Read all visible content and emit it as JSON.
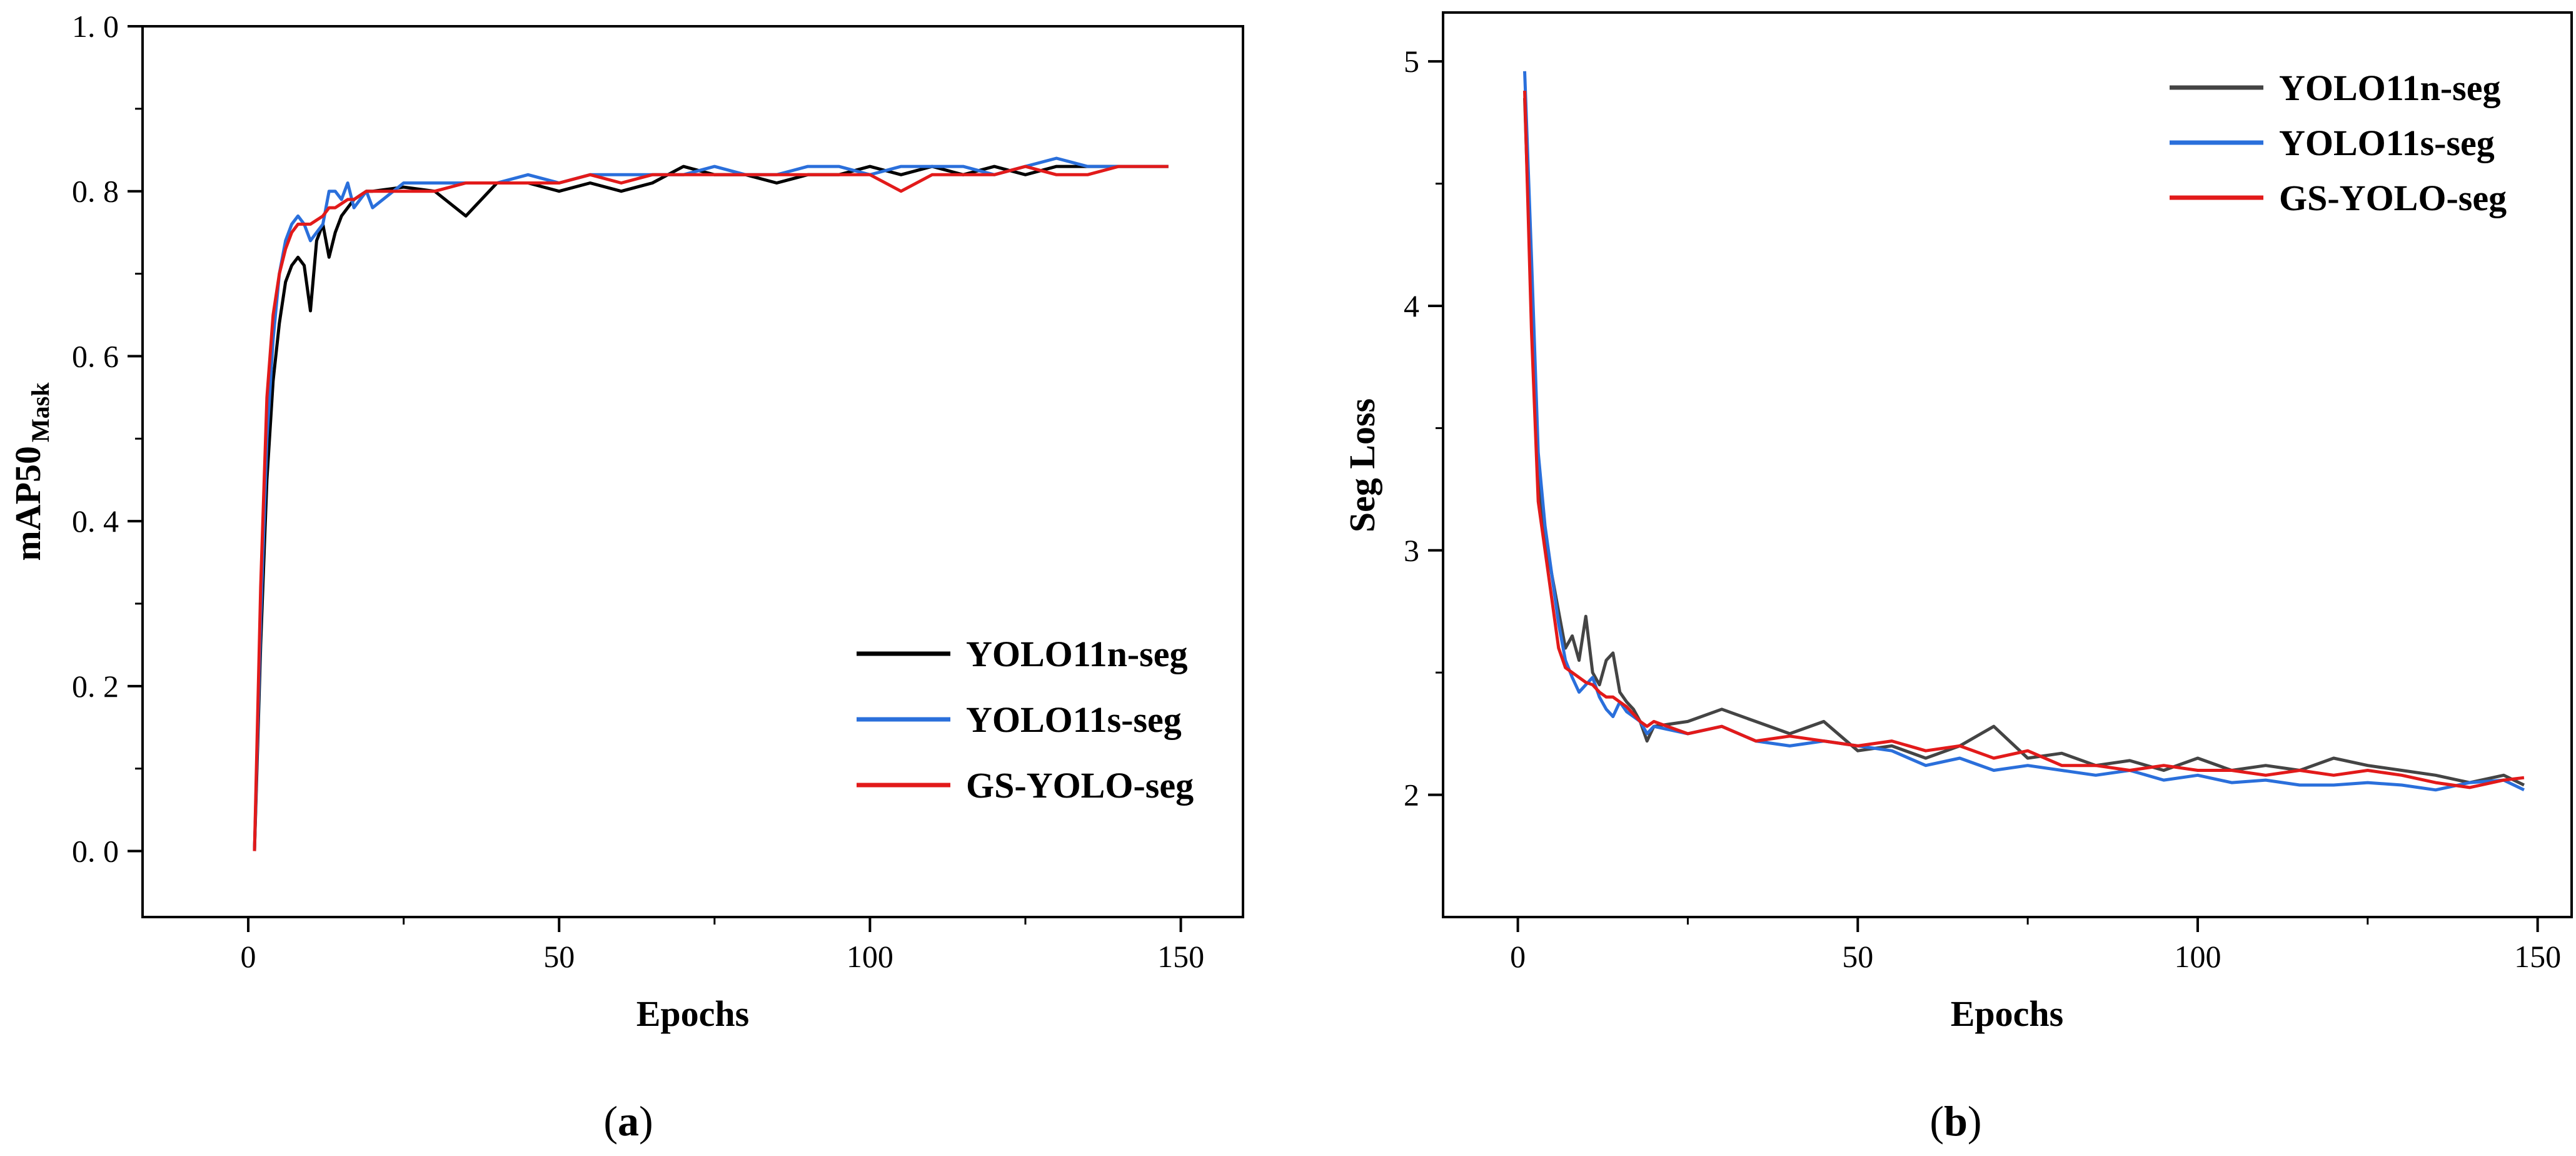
{
  "panels": [
    {
      "label_open": "(",
      "label_letter": "a",
      "label_close": ")"
    },
    {
      "label_open": "(",
      "label_letter": "b",
      "label_close": ")"
    }
  ],
  "chart_data": [
    {
      "type": "line",
      "title": "",
      "xlabel": "Epochs",
      "ylabel_main": "mAP50",
      "ylabel_sub": "Mask",
      "xlim": [
        -17,
        160
      ],
      "ylim": [
        -0.08,
        1.0
      ],
      "xticks": [
        0,
        50,
        100,
        150
      ],
      "xtick_labels": [
        "0",
        "50",
        "100",
        "150"
      ],
      "yticks": [
        0.0,
        0.2,
        0.4,
        0.6,
        0.8,
        1.0
      ],
      "ytick_labels": [
        "0. 0",
        "0. 2",
        "0. 4",
        "0. 6",
        "0. 8",
        "1. 0"
      ],
      "legend_position": "lower-right",
      "x": [
        1,
        2,
        3,
        4,
        5,
        6,
        7,
        8,
        9,
        10,
        11,
        12,
        13,
        14,
        15,
        16,
        17,
        18,
        19,
        20,
        25,
        30,
        35,
        40,
        45,
        50,
        55,
        60,
        65,
        70,
        75,
        80,
        85,
        90,
        95,
        100,
        105,
        110,
        115,
        120,
        125,
        130,
        135,
        140,
        145,
        148
      ],
      "series": [
        {
          "name": "YOLO11n-seg",
          "color": "#000000",
          "values": [
            0.0,
            0.25,
            0.45,
            0.57,
            0.64,
            0.69,
            0.71,
            0.72,
            0.71,
            0.655,
            0.74,
            0.76,
            0.72,
            0.75,
            0.77,
            0.78,
            0.79,
            0.795,
            0.8,
            0.8,
            0.805,
            0.8,
            0.77,
            0.81,
            0.81,
            0.8,
            0.81,
            0.8,
            0.81,
            0.83,
            0.82,
            0.82,
            0.81,
            0.82,
            0.82,
            0.83,
            0.82,
            0.83,
            0.82,
            0.83,
            0.82,
            0.83,
            0.83,
            0.83,
            0.83,
            0.83
          ]
        },
        {
          "name": "YOLO11s-seg",
          "color": "#2a6fdb",
          "values": [
            0.0,
            0.28,
            0.5,
            0.62,
            0.7,
            0.74,
            0.76,
            0.77,
            0.76,
            0.74,
            0.75,
            0.76,
            0.8,
            0.8,
            0.79,
            0.81,
            0.78,
            0.79,
            0.8,
            0.78,
            0.81,
            0.81,
            0.81,
            0.81,
            0.82,
            0.81,
            0.82,
            0.82,
            0.82,
            0.82,
            0.83,
            0.82,
            0.82,
            0.83,
            0.83,
            0.82,
            0.83,
            0.83,
            0.83,
            0.82,
            0.83,
            0.84,
            0.83,
            0.83,
            0.83,
            0.83
          ]
        },
        {
          "name": "GS-YOLO-seg",
          "color": "#e21a1a",
          "values": [
            0.0,
            0.32,
            0.55,
            0.65,
            0.7,
            0.73,
            0.75,
            0.76,
            0.76,
            0.76,
            0.765,
            0.77,
            0.78,
            0.78,
            0.785,
            0.79,
            0.79,
            0.795,
            0.8,
            0.8,
            0.8,
            0.8,
            0.81,
            0.81,
            0.81,
            0.81,
            0.82,
            0.81,
            0.82,
            0.82,
            0.82,
            0.82,
            0.82,
            0.82,
            0.82,
            0.82,
            0.8,
            0.82,
            0.82,
            0.82,
            0.83,
            0.82,
            0.82,
            0.83,
            0.83,
            0.83
          ]
        }
      ]
    },
    {
      "type": "line",
      "title": "",
      "xlabel": "Epochs",
      "ylabel": "Seg Loss",
      "xlim": [
        -11,
        155
      ],
      "ylim": [
        1.5,
        5.2
      ],
      "xticks": [
        0,
        50,
        100,
        150
      ],
      "xtick_labels": [
        "0",
        "50",
        "100",
        "150"
      ],
      "yticks": [
        2,
        3,
        4,
        5
      ],
      "ytick_labels": [
        "2",
        "3",
        "4",
        "5"
      ],
      "legend_position": "top-right",
      "x": [
        1,
        2,
        3,
        4,
        5,
        6,
        7,
        8,
        9,
        10,
        11,
        12,
        13,
        14,
        15,
        16,
        17,
        18,
        19,
        20,
        25,
        30,
        35,
        40,
        45,
        50,
        55,
        60,
        65,
        70,
        75,
        80,
        85,
        90,
        95,
        100,
        105,
        110,
        115,
        120,
        125,
        130,
        135,
        140,
        145,
        148
      ],
      "series": [
        {
          "name": "YOLO11n-seg",
          "color": "#444444",
          "values": [
            4.85,
            4.0,
            3.3,
            3.05,
            2.9,
            2.75,
            2.6,
            2.65,
            2.55,
            2.73,
            2.5,
            2.45,
            2.55,
            2.58,
            2.42,
            2.38,
            2.35,
            2.3,
            2.22,
            2.28,
            2.3,
            2.35,
            2.3,
            2.25,
            2.3,
            2.18,
            2.2,
            2.15,
            2.2,
            2.28,
            2.15,
            2.17,
            2.12,
            2.14,
            2.1,
            2.15,
            2.1,
            2.12,
            2.1,
            2.15,
            2.12,
            2.1,
            2.08,
            2.05,
            2.08,
            2.04
          ]
        },
        {
          "name": "YOLO11s-seg",
          "color": "#2a6fdb",
          "values": [
            4.96,
            4.2,
            3.4,
            3.1,
            2.9,
            2.7,
            2.55,
            2.48,
            2.42,
            2.45,
            2.48,
            2.4,
            2.35,
            2.32,
            2.38,
            2.34,
            2.32,
            2.3,
            2.25,
            2.28,
            2.25,
            2.28,
            2.22,
            2.2,
            2.22,
            2.2,
            2.18,
            2.12,
            2.15,
            2.1,
            2.12,
            2.1,
            2.08,
            2.1,
            2.06,
            2.08,
            2.05,
            2.06,
            2.04,
            2.04,
            2.05,
            2.04,
            2.02,
            2.05,
            2.06,
            2.02
          ]
        },
        {
          "name": "GS-YOLO-seg",
          "color": "#e21a1a",
          "values": [
            4.88,
            3.9,
            3.2,
            3.0,
            2.8,
            2.6,
            2.52,
            2.5,
            2.48,
            2.46,
            2.45,
            2.42,
            2.4,
            2.4,
            2.38,
            2.36,
            2.33,
            2.3,
            2.28,
            2.3,
            2.25,
            2.28,
            2.22,
            2.24,
            2.22,
            2.2,
            2.22,
            2.18,
            2.2,
            2.15,
            2.18,
            2.12,
            2.12,
            2.1,
            2.12,
            2.1,
            2.1,
            2.08,
            2.1,
            2.08,
            2.1,
            2.08,
            2.05,
            2.03,
            2.06,
            2.07
          ]
        }
      ]
    }
  ]
}
